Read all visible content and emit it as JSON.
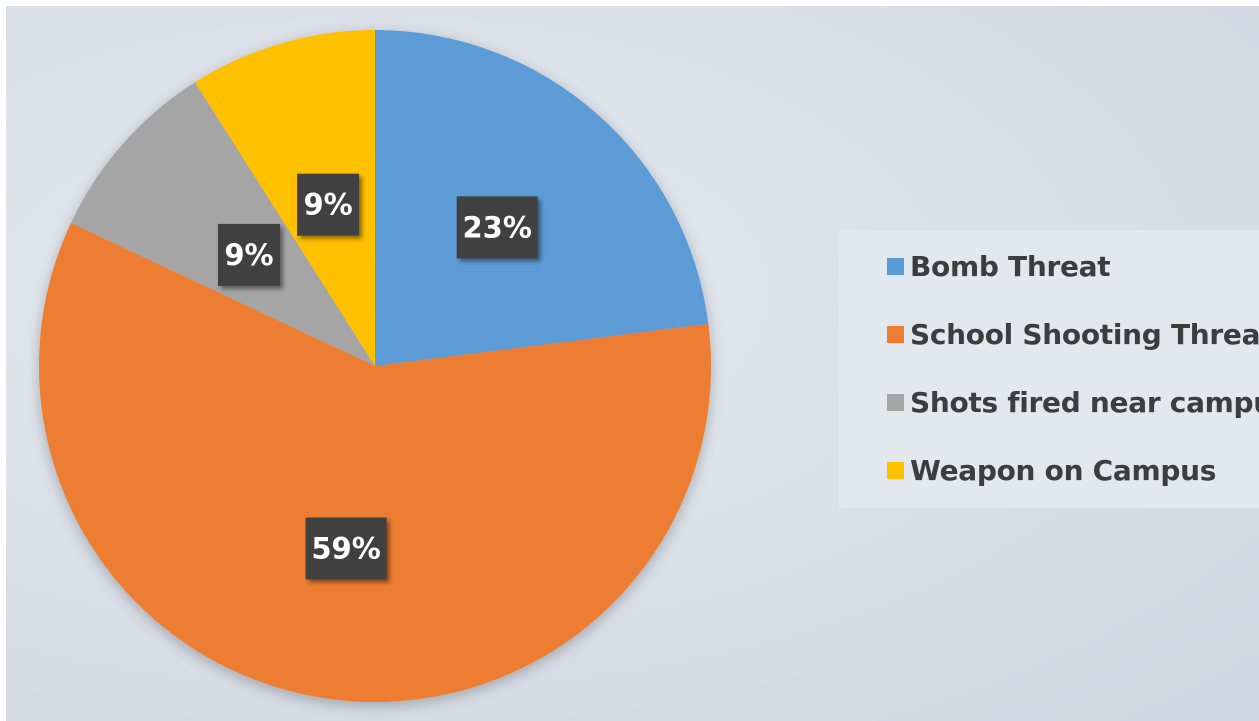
{
  "chart_data": {
    "type": "pie",
    "title": "",
    "categories": [
      "Bomb Threat",
      "School Shooting Threat",
      "Shots fired near campus",
      "Weapon on Campus"
    ],
    "values": [
      23,
      59,
      9,
      9
    ],
    "data_labels": [
      "23%",
      "59%",
      "9%",
      "9%"
    ],
    "colors": [
      "#5b9bd5",
      "#ed7d31",
      "#a5a5a5",
      "#ffc000"
    ],
    "start_angle_deg": 0,
    "direction": "clockwise",
    "legend": {
      "position": "right"
    }
  }
}
